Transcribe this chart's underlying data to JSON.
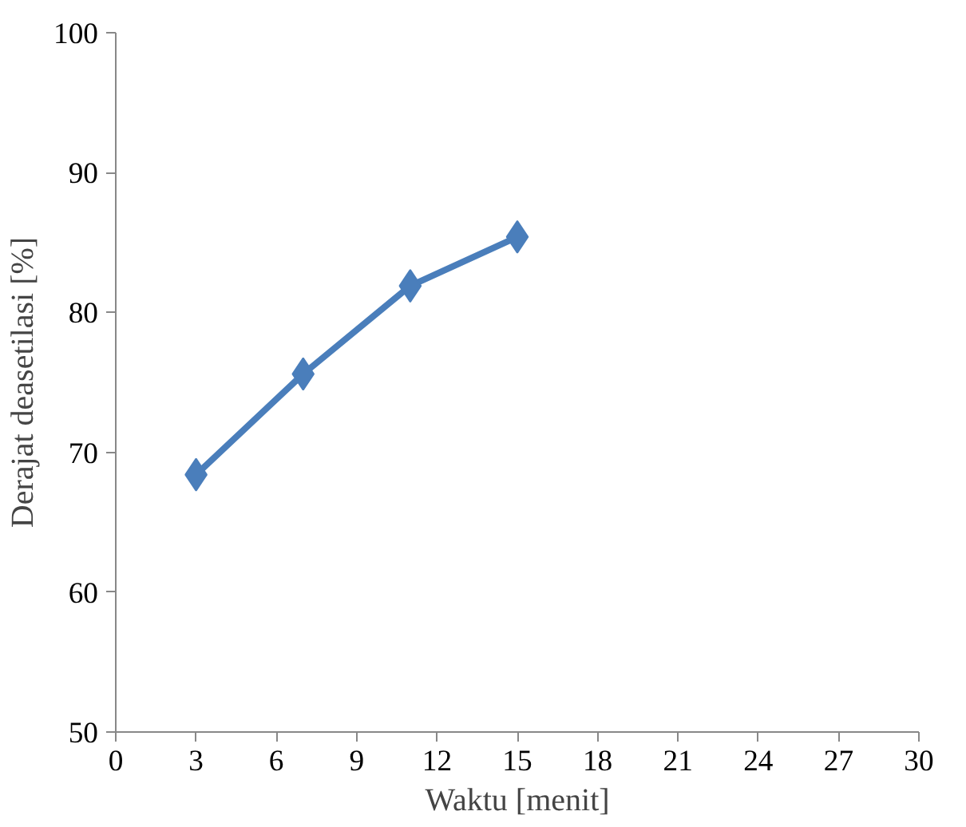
{
  "chart_data": {
    "type": "line",
    "xlabel": "Waktu [menit]",
    "ylabel": "Derajat deasetilasi [%]",
    "x": [
      3,
      7,
      11,
      15
    ],
    "series": [
      {
        "color": "#4a7ebb",
        "values": [
          68.4,
          75.6,
          81.9,
          85.4
        ]
      }
    ],
    "xlim": [
      0,
      30
    ],
    "xticks": [
      0,
      3,
      6,
      9,
      12,
      15,
      18,
      21,
      24,
      27,
      30
    ],
    "ylim": [
      50,
      100
    ],
    "yticks": [
      50,
      60,
      70,
      80,
      90,
      100
    ],
    "grid": false,
    "marker": "diamond",
    "line_style": "solid"
  }
}
